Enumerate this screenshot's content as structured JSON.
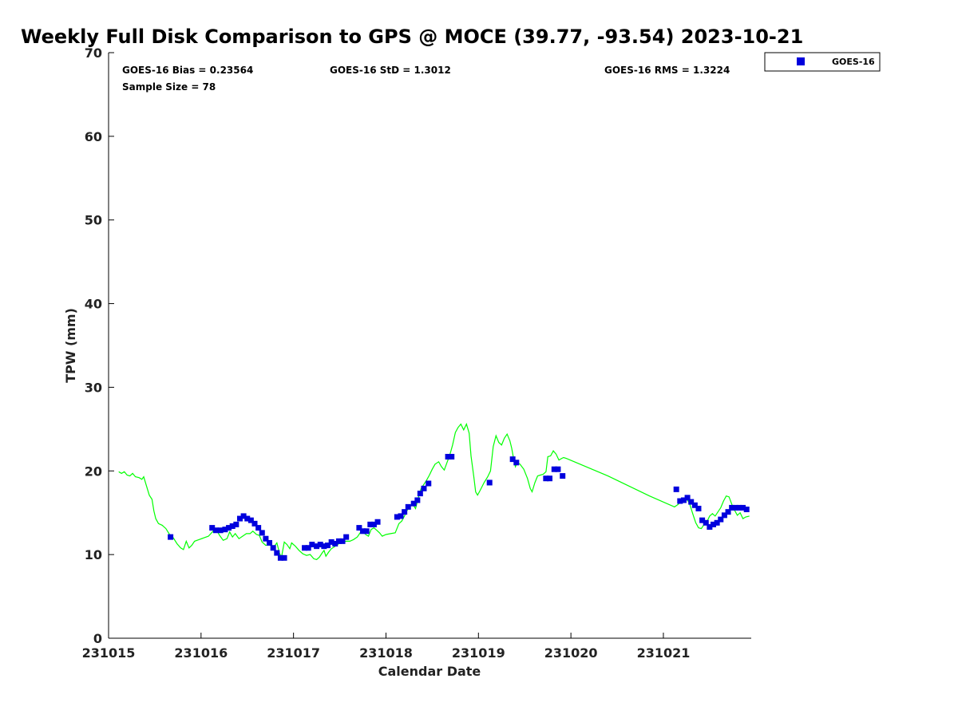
{
  "chart_data": {
    "type": "scatter",
    "title": "Weekly Full Disk Comparison to GPS @ MOCE (39.77, -93.54) 2023-10-21",
    "xlabel": "Calendar Date",
    "ylabel": "TPW (mm)",
    "xlim": [
      0,
      6.95
    ],
    "ylim": [
      0,
      70
    ],
    "x_ticks": [
      {
        "value": 0,
        "label": "231015"
      },
      {
        "value": 1,
        "label": "231016"
      },
      {
        "value": 2,
        "label": "231017"
      },
      {
        "value": 3,
        "label": "231018"
      },
      {
        "value": 4,
        "label": "231019"
      },
      {
        "value": 5,
        "label": "231020"
      },
      {
        "value": 6,
        "label": "231021"
      }
    ],
    "y_ticks": [
      0,
      10,
      20,
      30,
      40,
      50,
      60,
      70
    ],
    "stats": {
      "bias": "GOES-16 Bias = 0.23564",
      "std": "GOES-16 StD = 1.3012",
      "rms": "GOES-16 RMS = 1.3224",
      "sample": "Sample Size = 78"
    },
    "legend": {
      "label": "GOES-16",
      "position": "top-right outside"
    },
    "series": [
      {
        "name": "GPS",
        "kind": "line",
        "color": "#00ff00",
        "points": [
          [
            0.11,
            19.9
          ],
          [
            0.14,
            19.7
          ],
          [
            0.17,
            19.9
          ],
          [
            0.2,
            19.5
          ],
          [
            0.23,
            19.4
          ],
          [
            0.26,
            19.7
          ],
          [
            0.29,
            19.3
          ],
          [
            0.33,
            19.2
          ],
          [
            0.36,
            19.0
          ],
          [
            0.38,
            19.3
          ],
          [
            0.41,
            18.2
          ],
          [
            0.44,
            17.1
          ],
          [
            0.47,
            16.6
          ],
          [
            0.49,
            15.2
          ],
          [
            0.51,
            14.3
          ],
          [
            0.54,
            13.7
          ],
          [
            0.58,
            13.5
          ],
          [
            0.62,
            13.1
          ],
          [
            0.66,
            12.4
          ],
          [
            0.7,
            12.0
          ],
          [
            0.74,
            11.3
          ],
          [
            0.78,
            10.8
          ],
          [
            0.81,
            10.6
          ],
          [
            0.84,
            11.6
          ],
          [
            0.87,
            10.8
          ],
          [
            0.9,
            11.1
          ],
          [
            0.93,
            11.6
          ],
          [
            0.98,
            11.8
          ],
          [
            1.03,
            12.0
          ],
          [
            1.08,
            12.2
          ],
          [
            1.13,
            12.8
          ],
          [
            1.17,
            12.9
          ],
          [
            1.2,
            12.3
          ],
          [
            1.24,
            11.7
          ],
          [
            1.28,
            11.9
          ],
          [
            1.31,
            12.7
          ],
          [
            1.34,
            12.1
          ],
          [
            1.37,
            12.5
          ],
          [
            1.41,
            11.9
          ],
          [
            1.45,
            12.2
          ],
          [
            1.49,
            12.5
          ],
          [
            1.53,
            12.5
          ],
          [
            1.56,
            12.8
          ],
          [
            1.6,
            12.4
          ],
          [
            1.63,
            12.3
          ],
          [
            1.66,
            11.5
          ],
          [
            1.7,
            11.1
          ],
          [
            1.74,
            11.2
          ],
          [
            1.78,
            10.8
          ],
          [
            1.82,
            11.4
          ],
          [
            1.85,
            10.1
          ],
          [
            1.87,
            9.7
          ],
          [
            1.9,
            11.5
          ],
          [
            1.93,
            11.2
          ],
          [
            1.96,
            10.7
          ],
          [
            1.98,
            11.4
          ],
          [
            2.02,
            11.0
          ],
          [
            2.06,
            10.5
          ],
          [
            2.1,
            10.1
          ],
          [
            2.14,
            9.9
          ],
          [
            2.18,
            10.0
          ],
          [
            2.22,
            9.5
          ],
          [
            2.25,
            9.4
          ],
          [
            2.28,
            9.7
          ],
          [
            2.31,
            10.2
          ],
          [
            2.33,
            10.5
          ],
          [
            2.35,
            9.8
          ],
          [
            2.38,
            10.3
          ],
          [
            2.41,
            10.7
          ],
          [
            2.45,
            11.0
          ],
          [
            2.49,
            11.3
          ],
          [
            2.53,
            11.5
          ],
          [
            2.57,
            11.6
          ],
          [
            2.61,
            11.6
          ],
          [
            2.65,
            11.8
          ],
          [
            2.69,
            12.1
          ],
          [
            2.72,
            12.6
          ],
          [
            2.75,
            13.0
          ],
          [
            2.78,
            12.4
          ],
          [
            2.81,
            12.2
          ],
          [
            2.84,
            13.0
          ],
          [
            2.87,
            13.2
          ],
          [
            2.9,
            12.9
          ],
          [
            2.93,
            12.6
          ],
          [
            2.96,
            12.2
          ],
          [
            3.0,
            12.4
          ],
          [
            3.05,
            12.5
          ],
          [
            3.1,
            12.6
          ],
          [
            3.14,
            13.7
          ],
          [
            3.17,
            14.0
          ],
          [
            3.2,
            14.6
          ],
          [
            3.23,
            15.3
          ],
          [
            3.26,
            15.8
          ],
          [
            3.29,
            16.0
          ],
          [
            3.32,
            15.5
          ],
          [
            3.35,
            16.8
          ],
          [
            3.38,
            17.9
          ],
          [
            3.41,
            18.4
          ],
          [
            3.44,
            18.9
          ],
          [
            3.47,
            19.5
          ],
          [
            3.5,
            20.2
          ],
          [
            3.53,
            20.8
          ],
          [
            3.57,
            21.1
          ],
          [
            3.6,
            20.5
          ],
          [
            3.63,
            20.1
          ],
          [
            3.66,
            21.0
          ],
          [
            3.69,
            21.9
          ],
          [
            3.72,
            23.1
          ],
          [
            3.75,
            24.6
          ],
          [
            3.78,
            25.2
          ],
          [
            3.81,
            25.6
          ],
          [
            3.84,
            24.9
          ],
          [
            3.87,
            25.6
          ],
          [
            3.9,
            24.5
          ],
          [
            3.92,
            21.8
          ],
          [
            3.95,
            19.3
          ],
          [
            3.97,
            17.5
          ],
          [
            3.99,
            17.1
          ],
          [
            4.02,
            17.7
          ],
          [
            4.06,
            18.6
          ],
          [
            4.1,
            19.3
          ],
          [
            4.13,
            20.0
          ],
          [
            4.16,
            22.9
          ],
          [
            4.19,
            24.2
          ],
          [
            4.22,
            23.4
          ],
          [
            4.25,
            23.1
          ],
          [
            4.28,
            23.9
          ],
          [
            4.31,
            24.4
          ],
          [
            4.34,
            23.6
          ],
          [
            4.36,
            22.7
          ],
          [
            4.38,
            21.5
          ],
          [
            4.4,
            20.5
          ],
          [
            4.42,
            21.0
          ],
          [
            4.45,
            20.8
          ],
          [
            4.49,
            20.2
          ],
          [
            4.53,
            19.1
          ],
          [
            4.56,
            17.9
          ],
          [
            4.58,
            17.5
          ],
          [
            4.61,
            18.6
          ],
          [
            4.64,
            19.4
          ],
          [
            4.67,
            19.5
          ],
          [
            4.7,
            19.6
          ],
          [
            4.73,
            19.9
          ],
          [
            4.75,
            21.7
          ],
          [
            4.78,
            21.8
          ],
          [
            4.81,
            22.4
          ],
          [
            4.84,
            22.0
          ],
          [
            4.87,
            21.3
          ],
          [
            4.9,
            21.5
          ],
          [
            4.92,
            21.6
          ],
          [
            4.95,
            21.5
          ],
          [
            5.4,
            19.4
          ],
          [
            5.85,
            17.0
          ],
          [
            6.12,
            15.7
          ],
          [
            6.16,
            16.0
          ],
          [
            6.2,
            16.5
          ],
          [
            6.24,
            16.8
          ],
          [
            6.28,
            16.2
          ],
          [
            6.32,
            14.8
          ],
          [
            6.35,
            13.8
          ],
          [
            6.38,
            13.2
          ],
          [
            6.41,
            13.1
          ],
          [
            6.44,
            13.6
          ],
          [
            6.47,
            13.9
          ],
          [
            6.5,
            14.6
          ],
          [
            6.53,
            14.9
          ],
          [
            6.56,
            14.6
          ],
          [
            6.59,
            15.1
          ],
          [
            6.62,
            15.6
          ],
          [
            6.65,
            16.4
          ],
          [
            6.68,
            17.0
          ],
          [
            6.71,
            16.9
          ],
          [
            6.74,
            16.0
          ],
          [
            6.77,
            15.3
          ],
          [
            6.8,
            14.7
          ],
          [
            6.83,
            15.0
          ],
          [
            6.86,
            14.3
          ],
          [
            6.89,
            14.5
          ],
          [
            6.93,
            14.6
          ]
        ]
      },
      {
        "name": "GOES-16",
        "kind": "scatter",
        "color": "#0000dd",
        "points": [
          [
            0.67,
            12.1
          ],
          [
            1.12,
            13.2
          ],
          [
            1.16,
            12.9
          ],
          [
            1.21,
            12.9
          ],
          [
            1.26,
            13.0
          ],
          [
            1.3,
            13.2
          ],
          [
            1.34,
            13.4
          ],
          [
            1.38,
            13.6
          ],
          [
            1.42,
            14.3
          ],
          [
            1.46,
            14.6
          ],
          [
            1.5,
            14.3
          ],
          [
            1.54,
            14.1
          ],
          [
            1.58,
            13.7
          ],
          [
            1.62,
            13.2
          ],
          [
            1.66,
            12.6
          ],
          [
            1.7,
            11.9
          ],
          [
            1.74,
            11.4
          ],
          [
            1.78,
            10.8
          ],
          [
            1.82,
            10.2
          ],
          [
            1.86,
            9.6
          ],
          [
            1.9,
            9.6
          ],
          [
            2.12,
            10.8
          ],
          [
            2.16,
            10.8
          ],
          [
            2.2,
            11.2
          ],
          [
            2.25,
            11.0
          ],
          [
            2.29,
            11.2
          ],
          [
            2.33,
            11.0
          ],
          [
            2.37,
            11.1
          ],
          [
            2.41,
            11.5
          ],
          [
            2.45,
            11.3
          ],
          [
            2.49,
            11.6
          ],
          [
            2.53,
            11.6
          ],
          [
            2.57,
            12.1
          ],
          [
            2.71,
            13.2
          ],
          [
            2.75,
            12.8
          ],
          [
            2.79,
            12.8
          ],
          [
            2.83,
            13.6
          ],
          [
            2.87,
            13.6
          ],
          [
            2.91,
            13.9
          ],
          [
            3.12,
            14.5
          ],
          [
            3.16,
            14.6
          ],
          [
            3.2,
            15.1
          ],
          [
            3.24,
            15.7
          ],
          [
            3.3,
            16.1
          ],
          [
            3.34,
            16.5
          ],
          [
            3.37,
            17.3
          ],
          [
            3.41,
            17.9
          ],
          [
            3.46,
            18.5
          ],
          [
            3.67,
            21.7
          ],
          [
            3.71,
            21.7
          ],
          [
            4.12,
            18.6
          ],
          [
            4.37,
            21.4
          ],
          [
            4.41,
            21.0
          ],
          [
            4.73,
            19.1
          ],
          [
            4.77,
            19.1
          ],
          [
            4.82,
            20.2
          ],
          [
            4.86,
            20.2
          ],
          [
            4.91,
            19.4
          ],
          [
            6.14,
            17.8
          ],
          [
            6.18,
            16.4
          ],
          [
            6.22,
            16.5
          ],
          [
            6.26,
            16.8
          ],
          [
            6.3,
            16.3
          ],
          [
            6.34,
            15.9
          ],
          [
            6.38,
            15.5
          ],
          [
            6.42,
            14.1
          ],
          [
            6.46,
            13.8
          ],
          [
            6.5,
            13.3
          ],
          [
            6.54,
            13.6
          ],
          [
            6.58,
            13.8
          ],
          [
            6.62,
            14.2
          ],
          [
            6.66,
            14.7
          ],
          [
            6.7,
            15.1
          ],
          [
            6.74,
            15.6
          ],
          [
            6.78,
            15.6
          ],
          [
            6.82,
            15.6
          ],
          [
            6.86,
            15.6
          ],
          [
            6.9,
            15.4
          ]
        ]
      }
    ]
  }
}
